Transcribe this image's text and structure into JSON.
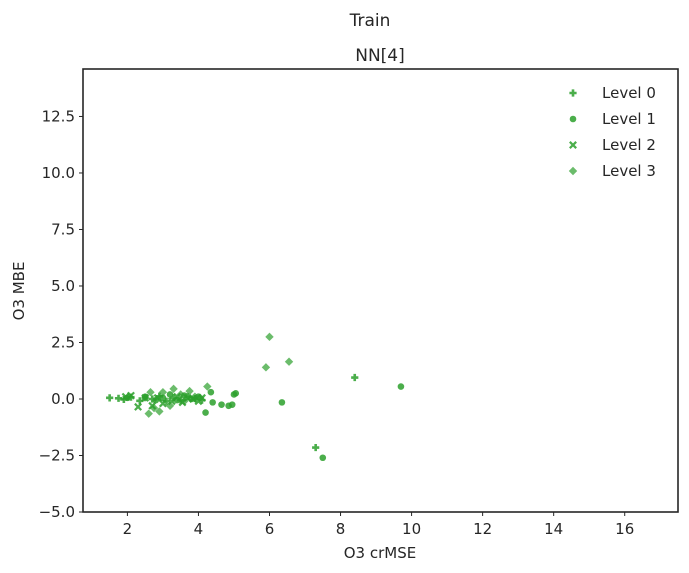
{
  "chart_data": {
    "type": "scatter",
    "suptitle": "Train",
    "title": "NN[4]",
    "xlabel": "O3 crMSE",
    "ylabel": "O3 MBE",
    "xlim": [
      0.75,
      17.5
    ],
    "ylim": [
      -5.0,
      14.6
    ],
    "xticks": [
      2,
      4,
      6,
      8,
      10,
      12,
      14,
      16
    ],
    "yticks": [
      -5.0,
      -2.5,
      0.0,
      2.5,
      5.0,
      7.5,
      10.0,
      12.5
    ],
    "ytick_labels": [
      "−5.0",
      "−2.5",
      "0.0",
      "2.5",
      "5.0",
      "7.5",
      "10.0",
      "12.5"
    ],
    "grid": false,
    "legend_position": "top-right",
    "color": "#2ca02c",
    "series": [
      {
        "name": "Level 0",
        "marker": "plus",
        "points": [
          [
            1.5,
            0.05
          ],
          [
            1.75,
            0.03
          ],
          [
            1.9,
            -0.02
          ],
          [
            2.1,
            0.08
          ],
          [
            2.35,
            -0.08
          ],
          [
            2.5,
            0.06
          ],
          [
            2.7,
            0.0
          ],
          [
            2.9,
            0.12
          ],
          [
            3.1,
            -0.1
          ],
          [
            3.3,
            0.05
          ],
          [
            3.5,
            -0.05
          ],
          [
            3.7,
            0.1
          ],
          [
            3.9,
            0.02
          ],
          [
            4.1,
            -0.05
          ],
          [
            8.4,
            0.95
          ],
          [
            7.3,
            -2.15
          ]
        ]
      },
      {
        "name": "Level 1",
        "marker": "circle",
        "points": [
          [
            2.0,
            0.05
          ],
          [
            2.5,
            0.1
          ],
          [
            2.8,
            -0.05
          ],
          [
            3.0,
            0.05
          ],
          [
            3.2,
            0.2
          ],
          [
            3.4,
            -0.05
          ],
          [
            3.6,
            0.15
          ],
          [
            3.8,
            0.0
          ],
          [
            4.0,
            0.1
          ],
          [
            4.2,
            -0.6
          ],
          [
            4.35,
            0.3
          ],
          [
            4.4,
            -0.15
          ],
          [
            4.65,
            -0.25
          ],
          [
            4.85,
            -0.3
          ],
          [
            4.95,
            -0.25
          ],
          [
            5.0,
            0.2
          ],
          [
            5.05,
            0.25
          ],
          [
            6.35,
            -0.15
          ],
          [
            9.7,
            0.55
          ],
          [
            7.5,
            -2.6
          ]
        ]
      },
      {
        "name": "Level 2",
        "marker": "x",
        "points": [
          [
            1.95,
            0.1
          ],
          [
            2.1,
            0.15
          ],
          [
            2.3,
            -0.35
          ],
          [
            2.5,
            0.05
          ],
          [
            2.7,
            -0.3
          ],
          [
            2.85,
            0.05
          ],
          [
            3.0,
            -0.2
          ],
          [
            3.25,
            -0.1
          ],
          [
            3.4,
            0.1
          ],
          [
            3.55,
            -0.15
          ],
          [
            3.7,
            0.05
          ],
          [
            3.85,
            0.0
          ],
          [
            4.0,
            -0.1
          ],
          [
            4.1,
            0.05
          ]
        ]
      },
      {
        "name": "Level 3",
        "marker": "diamond",
        "points": [
          [
            2.6,
            -0.65
          ],
          [
            2.65,
            0.3
          ],
          [
            2.75,
            -0.4
          ],
          [
            2.9,
            -0.55
          ],
          [
            3.0,
            0.3
          ],
          [
            3.2,
            -0.3
          ],
          [
            3.3,
            0.45
          ],
          [
            3.5,
            0.2
          ],
          [
            3.6,
            -0.1
          ],
          [
            3.75,
            0.35
          ],
          [
            3.9,
            0.1
          ],
          [
            4.05,
            0.05
          ],
          [
            4.25,
            0.55
          ],
          [
            5.9,
            1.4
          ],
          [
            6.0,
            2.75
          ],
          [
            6.55,
            1.65
          ]
        ]
      }
    ]
  }
}
